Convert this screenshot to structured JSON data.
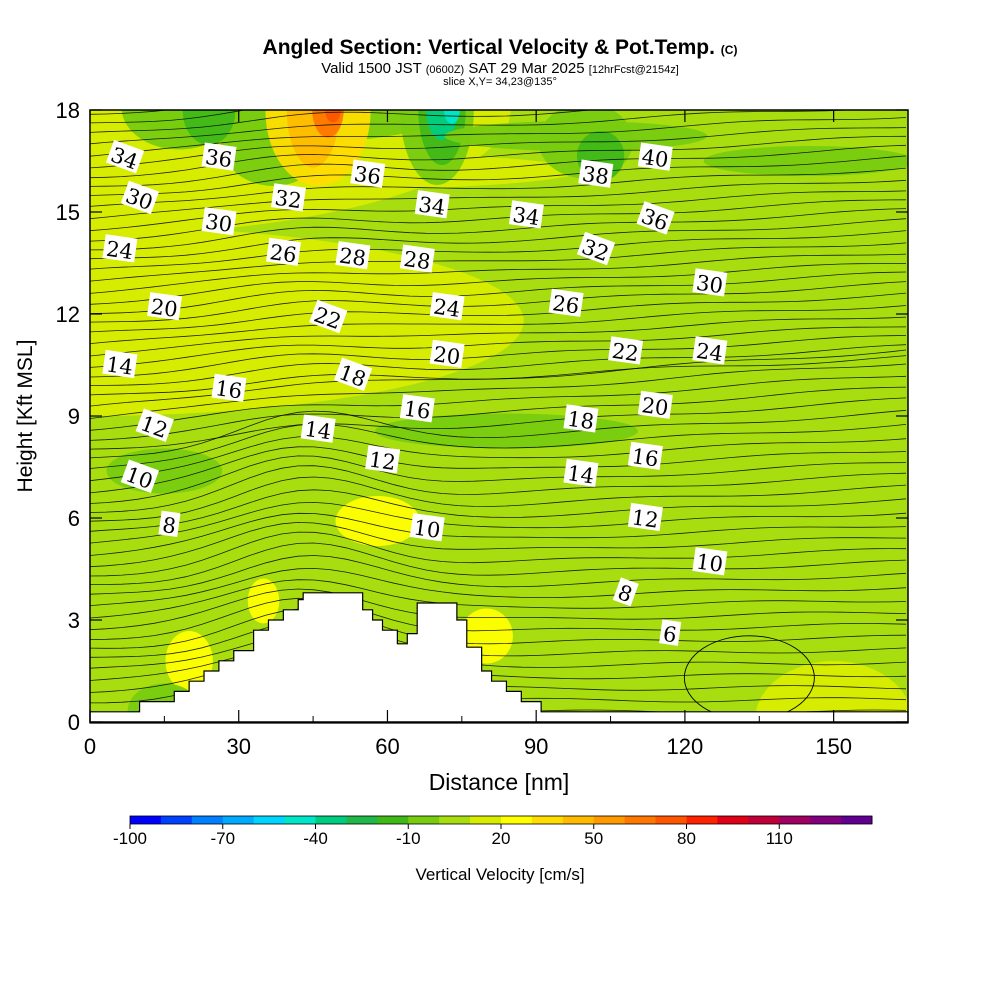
{
  "title": {
    "main": "Angled Section: Vertical Velocity & Pot.Temp.",
    "main_mark": "(C)",
    "valid_a": "Valid 1500 JST",
    "valid_b": "(0600Z)",
    "valid_c": "SAT 29 Mar 2025",
    "valid_d": "[12hrFcst@2154z]",
    "slice": "slice X,Y= 34,23@135°"
  },
  "chart_data": {
    "type": "heatmap",
    "xlabel": "Distance [nm]",
    "ylabel": "Height [Kft MSL]",
    "xlim": [
      0,
      165
    ],
    "ylim": [
      0,
      18
    ],
    "xticks": [
      0,
      30,
      60,
      90,
      120,
      150
    ],
    "yticks": [
      0,
      3,
      6,
      9,
      12,
      15,
      18
    ],
    "colorbar": {
      "label": "Vertical Velocity [cm/s]",
      "ticks": [
        -100,
        -70,
        -40,
        -10,
        20,
        50,
        80,
        110
      ],
      "colors": [
        "#0000ff",
        "#0040ff",
        "#0080ff",
        "#00aaff",
        "#00d5ff",
        "#00e6c8",
        "#00cc80",
        "#20b848",
        "#40b818",
        "#78cc10",
        "#a8dd10",
        "#d8ec00",
        "#ffff00",
        "#ffdd00",
        "#ffbb00",
        "#ff9900",
        "#ff7700",
        "#ff5500",
        "#ff2200",
        "#e00018",
        "#c00038",
        "#a00060",
        "#800080",
        "#600090"
      ]
    },
    "terrain_kft": [
      [
        0,
        0.3
      ],
      [
        10,
        0.6
      ],
      [
        17,
        0.9
      ],
      [
        20,
        1.2
      ],
      [
        23,
        1.5
      ],
      [
        26,
        1.8
      ],
      [
        29,
        2.1
      ],
      [
        33,
        2.7
      ],
      [
        36,
        3.0
      ],
      [
        39,
        3.3
      ],
      [
        42,
        3.6
      ],
      [
        43,
        3.8
      ],
      [
        52,
        3.8
      ],
      [
        55,
        3.3
      ],
      [
        57,
        3.0
      ],
      [
        59,
        2.7
      ],
      [
        62,
        2.3
      ],
      [
        64,
        2.6
      ],
      [
        66,
        3.5
      ],
      [
        72,
        3.5
      ],
      [
        74,
        3.0
      ],
      [
        76,
        2.2
      ],
      [
        79,
        1.5
      ],
      [
        81,
        1.2
      ],
      [
        84,
        0.9
      ],
      [
        87,
        0.6
      ],
      [
        91,
        0.3
      ],
      [
        165,
        0.3
      ]
    ],
    "theta_labels": [
      {
        "text": "34",
        "x": 7,
        "y": 16.6
      },
      {
        "text": "36",
        "x": 26,
        "y": 16.6
      },
      {
        "text": "36",
        "x": 56,
        "y": 16.1
      },
      {
        "text": "38",
        "x": 102,
        "y": 16.1
      },
      {
        "text": "40",
        "x": 114,
        "y": 16.6
      },
      {
        "text": "30",
        "x": 10,
        "y": 15.4
      },
      {
        "text": "32",
        "x": 40,
        "y": 15.4
      },
      {
        "text": "34",
        "x": 69,
        "y": 15.2
      },
      {
        "text": "34",
        "x": 88,
        "y": 14.9
      },
      {
        "text": "30",
        "x": 26,
        "y": 14.7
      },
      {
        "text": "36",
        "x": 114,
        "y": 14.8
      },
      {
        "text": "24",
        "x": 6,
        "y": 13.9
      },
      {
        "text": "26",
        "x": 39,
        "y": 13.8
      },
      {
        "text": "28",
        "x": 53,
        "y": 13.7
      },
      {
        "text": "28",
        "x": 66,
        "y": 13.6
      },
      {
        "text": "32",
        "x": 102,
        "y": 13.9
      },
      {
        "text": "30",
        "x": 125,
        "y": 12.9
      },
      {
        "text": "20",
        "x": 15,
        "y": 12.2
      },
      {
        "text": "26",
        "x": 96,
        "y": 12.3
      },
      {
        "text": "24",
        "x": 72,
        "y": 12.2
      },
      {
        "text": "22",
        "x": 48,
        "y": 11.9
      },
      {
        "text": "22",
        "x": 108,
        "y": 10.9
      },
      {
        "text": "24",
        "x": 125,
        "y": 10.9
      },
      {
        "text": "20",
        "x": 72,
        "y": 10.8
      },
      {
        "text": "14",
        "x": 6,
        "y": 10.5
      },
      {
        "text": "18",
        "x": 53,
        "y": 10.2
      },
      {
        "text": "16",
        "x": 28,
        "y": 9.8
      },
      {
        "text": "20",
        "x": 114,
        "y": 9.3
      },
      {
        "text": "16",
        "x": 66,
        "y": 9.2
      },
      {
        "text": "18",
        "x": 99,
        "y": 8.9
      },
      {
        "text": "12",
        "x": 13,
        "y": 8.7
      },
      {
        "text": "14",
        "x": 46,
        "y": 8.6
      },
      {
        "text": "16",
        "x": 112,
        "y": 7.8
      },
      {
        "text": "12",
        "x": 59,
        "y": 7.7
      },
      {
        "text": "14",
        "x": 99,
        "y": 7.3
      },
      {
        "text": "10",
        "x": 10,
        "y": 7.2
      },
      {
        "text": "12",
        "x": 112,
        "y": 6.0
      },
      {
        "text": "8",
        "x": 16,
        "y": 5.8
      },
      {
        "text": "10",
        "x": 68,
        "y": 5.7
      },
      {
        "text": "10",
        "x": 125,
        "y": 4.7
      },
      {
        "text": "8",
        "x": 108,
        "y": 3.8
      },
      {
        "text": "6",
        "x": 117,
        "y": 2.6
      }
    ]
  }
}
